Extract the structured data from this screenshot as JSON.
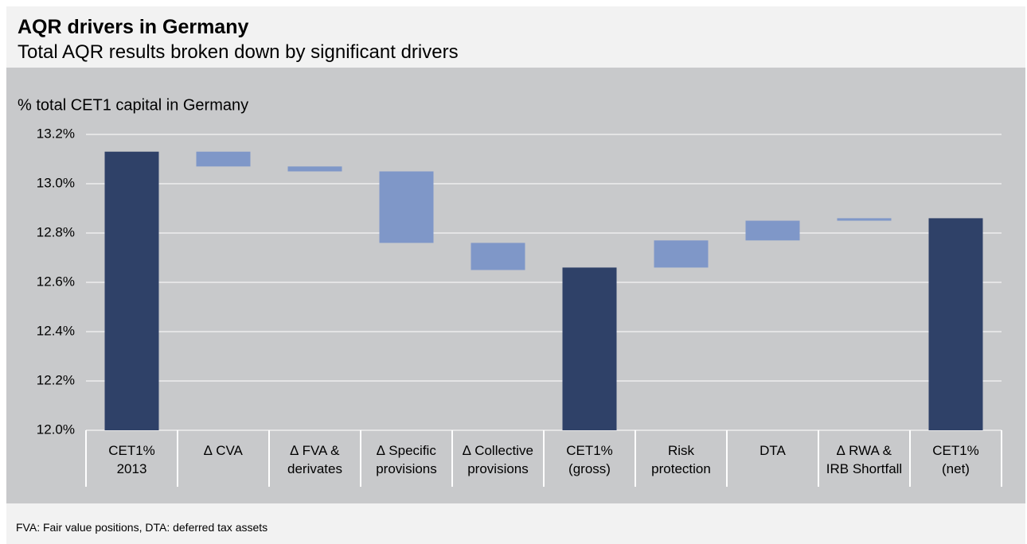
{
  "chart_data": {
    "type": "waterfall",
    "title": "AQR drivers in Germany",
    "subtitle": "Total AQR results broken down by significant drivers",
    "y_label": "% total CET1 capital in Germany",
    "footnote": "FVA: Fair value  positions,  DTA: deferred tax  assets",
    "categories": [
      "CET1%\n2013",
      "∆ CVA",
      "∆ FVA &\nderivates",
      "∆ Specific\nprovisions",
      "∆ Collective\nprovisions",
      "CET1%\n(gross)",
      "Risk\nprotection",
      "DTA",
      "∆ RWA &\nIRB Shortfall",
      "CET1%\n(net)"
    ],
    "values": [
      13.13,
      -0.06,
      -0.02,
      -0.29,
      -0.11,
      12.66,
      0.11,
      0.08,
      0.01,
      12.86
    ],
    "measures": [
      "total",
      "relative",
      "relative",
      "relative",
      "relative",
      "total",
      "relative",
      "relative",
      "relative",
      "total"
    ],
    "colors": {
      "total": "#2f4168",
      "relative": "#7f97c8"
    },
    "ylim": [
      12.0,
      13.2
    ],
    "yticks": [
      {
        "value": 12.0,
        "label": "12.0%"
      },
      {
        "value": 12.2,
        "label": "12.2%"
      },
      {
        "value": 12.4,
        "label": "12.4%"
      },
      {
        "value": 12.6,
        "label": "12.6%"
      },
      {
        "value": 12.8,
        "label": "12.8%"
      },
      {
        "value": 13.0,
        "label": "13.0%"
      },
      {
        "value": 13.2,
        "label": "13.2%"
      }
    ],
    "grid": true
  }
}
